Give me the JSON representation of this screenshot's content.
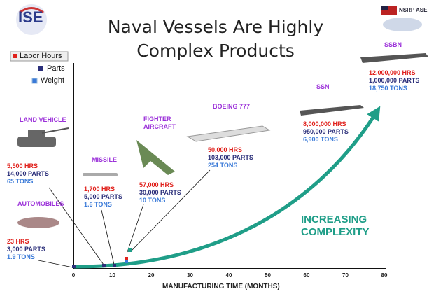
{
  "logo": "ISE",
  "badge": "NSRP ASE",
  "header": {
    "title": [
      "Naval Vessels Are Highly",
      "Complex Products"
    ]
  },
  "legend": [
    "Labor Hours",
    "Parts",
    "Weight"
  ],
  "axis": {
    "ticks": [
      0,
      10,
      20,
      30,
      40,
      50,
      60,
      70,
      80
    ],
    "label": "MANUFACTURING TIME (MONTHS)"
  },
  "products": [
    {
      "name": "LAND VEHICLE",
      "hours": "5,500 HRS",
      "parts": "14,000 PARTS",
      "weight": "65 TONS"
    },
    {
      "name": "AUTOMOBILES",
      "hours": "23 HRS",
      "parts": "3,000 PARTS",
      "weight": "1.9 TONS"
    },
    {
      "name": "MISSILE",
      "hours": "1,700 HRS",
      "parts": "5,000 PARTS",
      "weight": "1.6 TONS"
    },
    {
      "name": "FIGHTER AIRCRAFT",
      "hours": "57,000 HRS",
      "parts": "30,000 PARTS",
      "weight": "10 TONS"
    },
    {
      "name": "BOEING 777",
      "hours": "50,000 HRS",
      "parts": "103,000 PARTS",
      "weight": "254 TONS"
    },
    {
      "name": "SSN",
      "hours": "8,000,000 HRS",
      "parts": "950,000 PARTS",
      "weight": "6,900 TONS"
    },
    {
      "name": "SSBN",
      "hours": "12,000,000 HRS",
      "parts": "1,000,000 PARTS",
      "weight": "18,750 TONS"
    }
  ],
  "annotation": [
    "INCREASING",
    "COMPLEXITY"
  ]
}
